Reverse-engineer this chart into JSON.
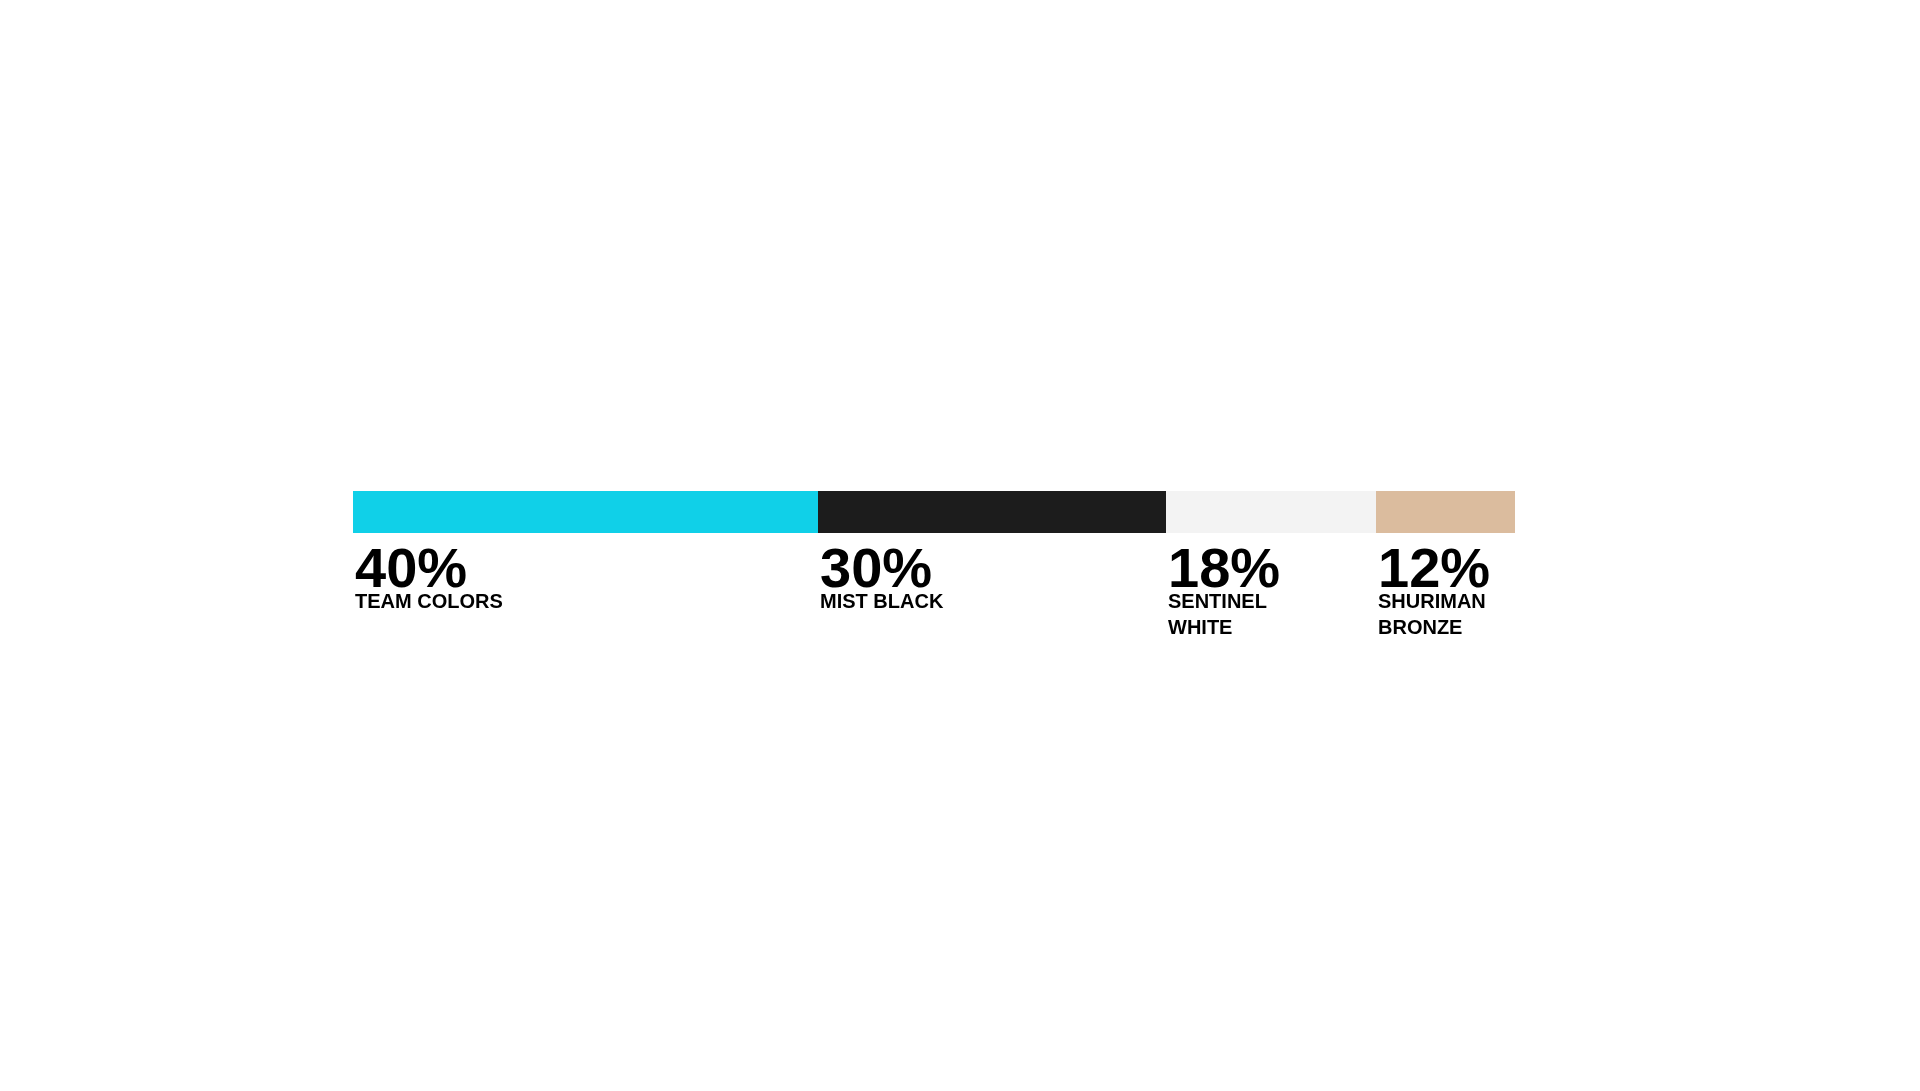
{
  "chart_data": {
    "type": "bar",
    "orientation": "horizontal",
    "stacked": true,
    "categories": [
      null
    ],
    "series": [
      {
        "name": "TEAM COLORS",
        "color": "#10d0e8",
        "values": [
          40
        ],
        "value_labels": [
          "40%"
        ]
      },
      {
        "name": "MIST BLACK",
        "color": "#1c1c1c",
        "values": [
          30
        ],
        "value_labels": [
          "30%"
        ]
      },
      {
        "name": "SENTINEL WHITE",
        "color": "#f3f3f3",
        "values": [
          18
        ],
        "value_labels": [
          "18%"
        ]
      },
      {
        "name": "SHURIMAN BRONZE",
        "color": "#dbbc9e",
        "values": [
          12
        ],
        "value_labels": [
          "12%"
        ]
      }
    ],
    "tick_labels": false,
    "legend": false
  }
}
